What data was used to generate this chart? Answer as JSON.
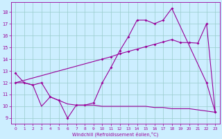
{
  "bg_color": "#cceeff",
  "grid_color": "#99cccc",
  "line_color": "#990099",
  "xlabel": "Windchill (Refroidissement éolien,°C)",
  "ylim": [
    8.5,
    18.8
  ],
  "xlim": [
    -0.5,
    23.5
  ],
  "yticks": [
    9,
    10,
    11,
    12,
    13,
    14,
    15,
    16,
    17,
    18
  ],
  "xticks": [
    0,
    1,
    2,
    3,
    4,
    5,
    6,
    7,
    8,
    9,
    10,
    11,
    12,
    13,
    14,
    15,
    16,
    17,
    18,
    19,
    20,
    21,
    22,
    23
  ],
  "line_zigzag_x": [
    0,
    1,
    2,
    3,
    4,
    5,
    6,
    7,
    8,
    9,
    10,
    11,
    12,
    13,
    14,
    15,
    16,
    17,
    18,
    22,
    23
  ],
  "line_zigzag_y": [
    12.8,
    12.0,
    11.8,
    12.0,
    10.8,
    10.5,
    9.0,
    10.1,
    10.1,
    10.3,
    12.0,
    13.3,
    14.7,
    15.9,
    17.3,
    17.3,
    17.0,
    17.3,
    18.3,
    12.0,
    9.5
  ],
  "line_diag_x": [
    0,
    10,
    11,
    12,
    13,
    14,
    15,
    16,
    17,
    18,
    19,
    20,
    21,
    22,
    23
  ],
  "line_diag_y": [
    12.0,
    14.0,
    14.2,
    14.45,
    14.65,
    14.85,
    15.05,
    15.25,
    15.45,
    15.65,
    15.4,
    15.4,
    15.35,
    17.0,
    9.5
  ],
  "line_flat_x": [
    0,
    1,
    2,
    3,
    4,
    5,
    6,
    7,
    8,
    9,
    10,
    11,
    12,
    13,
    14,
    15,
    16,
    17,
    18,
    19,
    20,
    21,
    22,
    23
  ],
  "line_flat_y": [
    12.0,
    12.0,
    11.8,
    10.0,
    10.8,
    10.5,
    10.2,
    10.1,
    10.1,
    10.1,
    10.0,
    10.0,
    10.0,
    10.0,
    10.0,
    10.0,
    9.9,
    9.9,
    9.8,
    9.8,
    9.8,
    9.7,
    9.6,
    9.5
  ]
}
